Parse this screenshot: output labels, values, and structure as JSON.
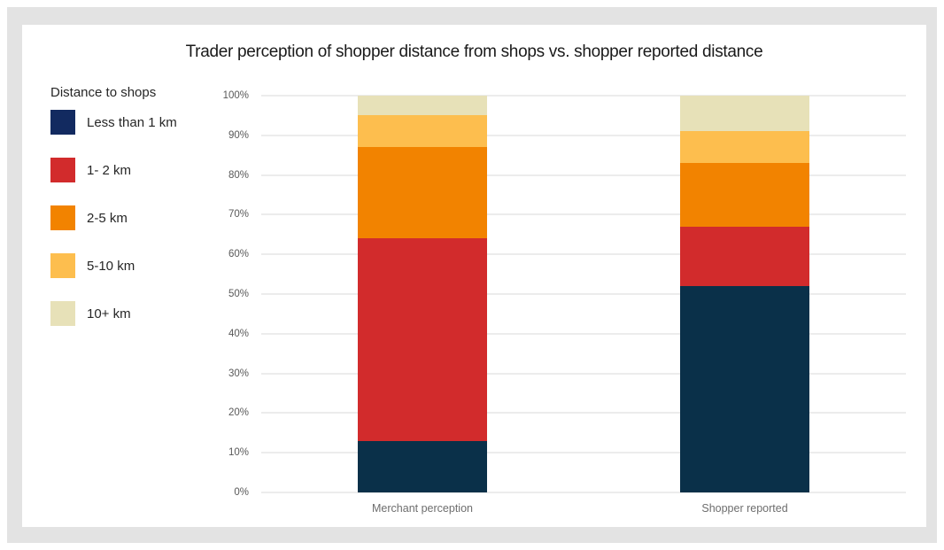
{
  "page": {
    "background_color": "#ffffff",
    "frame_color": "#e3e3e3",
    "card_color": "#ffffff"
  },
  "chart_data": {
    "type": "bar",
    "stacked": true,
    "orientation": "vertical",
    "title": "Trader perception of shopper distance from shops vs. shopper reported distance",
    "legend_title": "Distance to shops",
    "legend_position": "left",
    "categories": [
      "Merchant perception",
      "Shopper reported"
    ],
    "series": [
      {
        "name": "Less than 1 km",
        "color": "#0a3049",
        "legend_color": "#122a60",
        "values": [
          13,
          52
        ]
      },
      {
        "name": "1- 2 km",
        "color": "#d22b2c",
        "legend_color": "#d22b2c",
        "values": [
          51,
          15
        ]
      },
      {
        "name": "2-5 km",
        "color": "#f28300",
        "legend_color": "#f28300",
        "values": [
          23,
          16
        ]
      },
      {
        "name": "5-10 km",
        "color": "#fdbe4e",
        "legend_color": "#fdbe4e",
        "values": [
          8,
          8
        ]
      },
      {
        "name": "10+ km",
        "color": "#e7e1b8",
        "legend_color": "#e7e1b8",
        "values": [
          5,
          9
        ]
      }
    ],
    "xlabel": "",
    "ylabel": "",
    "ylim": [
      0,
      100
    ],
    "y_ticks": [
      "0%",
      "10%",
      "20%",
      "30%",
      "40%",
      "50%",
      "60%",
      "70%",
      "80%",
      "90%",
      "100%"
    ],
    "gridlines": true,
    "gridline_color": "#d9d9d9",
    "axis_text_color": "#595959",
    "category_text_color": "#6e6e6e"
  }
}
